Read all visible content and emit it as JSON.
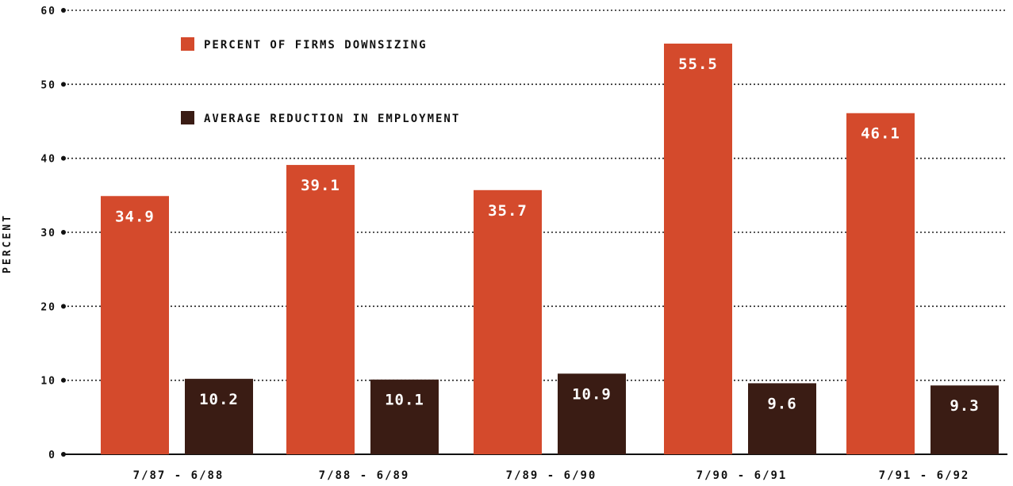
{
  "chart_data": {
    "type": "bar",
    "title": "",
    "xlabel": "",
    "ylabel": "PERCENT",
    "ylim": [
      0,
      60
    ],
    "yticks": [
      "0",
      "10",
      "20",
      "30",
      "40",
      "50",
      "60"
    ],
    "grid": true,
    "legend_position": "top-left",
    "categories": [
      "7/87 - 6/88",
      "7/88 - 6/89",
      "7/89 - 6/90",
      "7/90 - 6/91",
      "7/91 - 6/92"
    ],
    "series": [
      {
        "name": "PERCENT OF FIRMS DOWNSIZING",
        "color": "#d44a2c",
        "values": [
          34.9,
          39.1,
          35.7,
          55.5,
          46.1
        ],
        "labels": [
          "34.9",
          "39.1",
          "35.7",
          "55.5",
          "46.1"
        ]
      },
      {
        "name": "AVERAGE REDUCTION IN EMPLOYMENT",
        "color": "#3a1c14",
        "values": [
          10.2,
          10.1,
          10.9,
          9.6,
          9.3
        ],
        "labels": [
          "10.2",
          "10.1",
          "10.9",
          "9.6",
          "9.3"
        ]
      }
    ]
  }
}
